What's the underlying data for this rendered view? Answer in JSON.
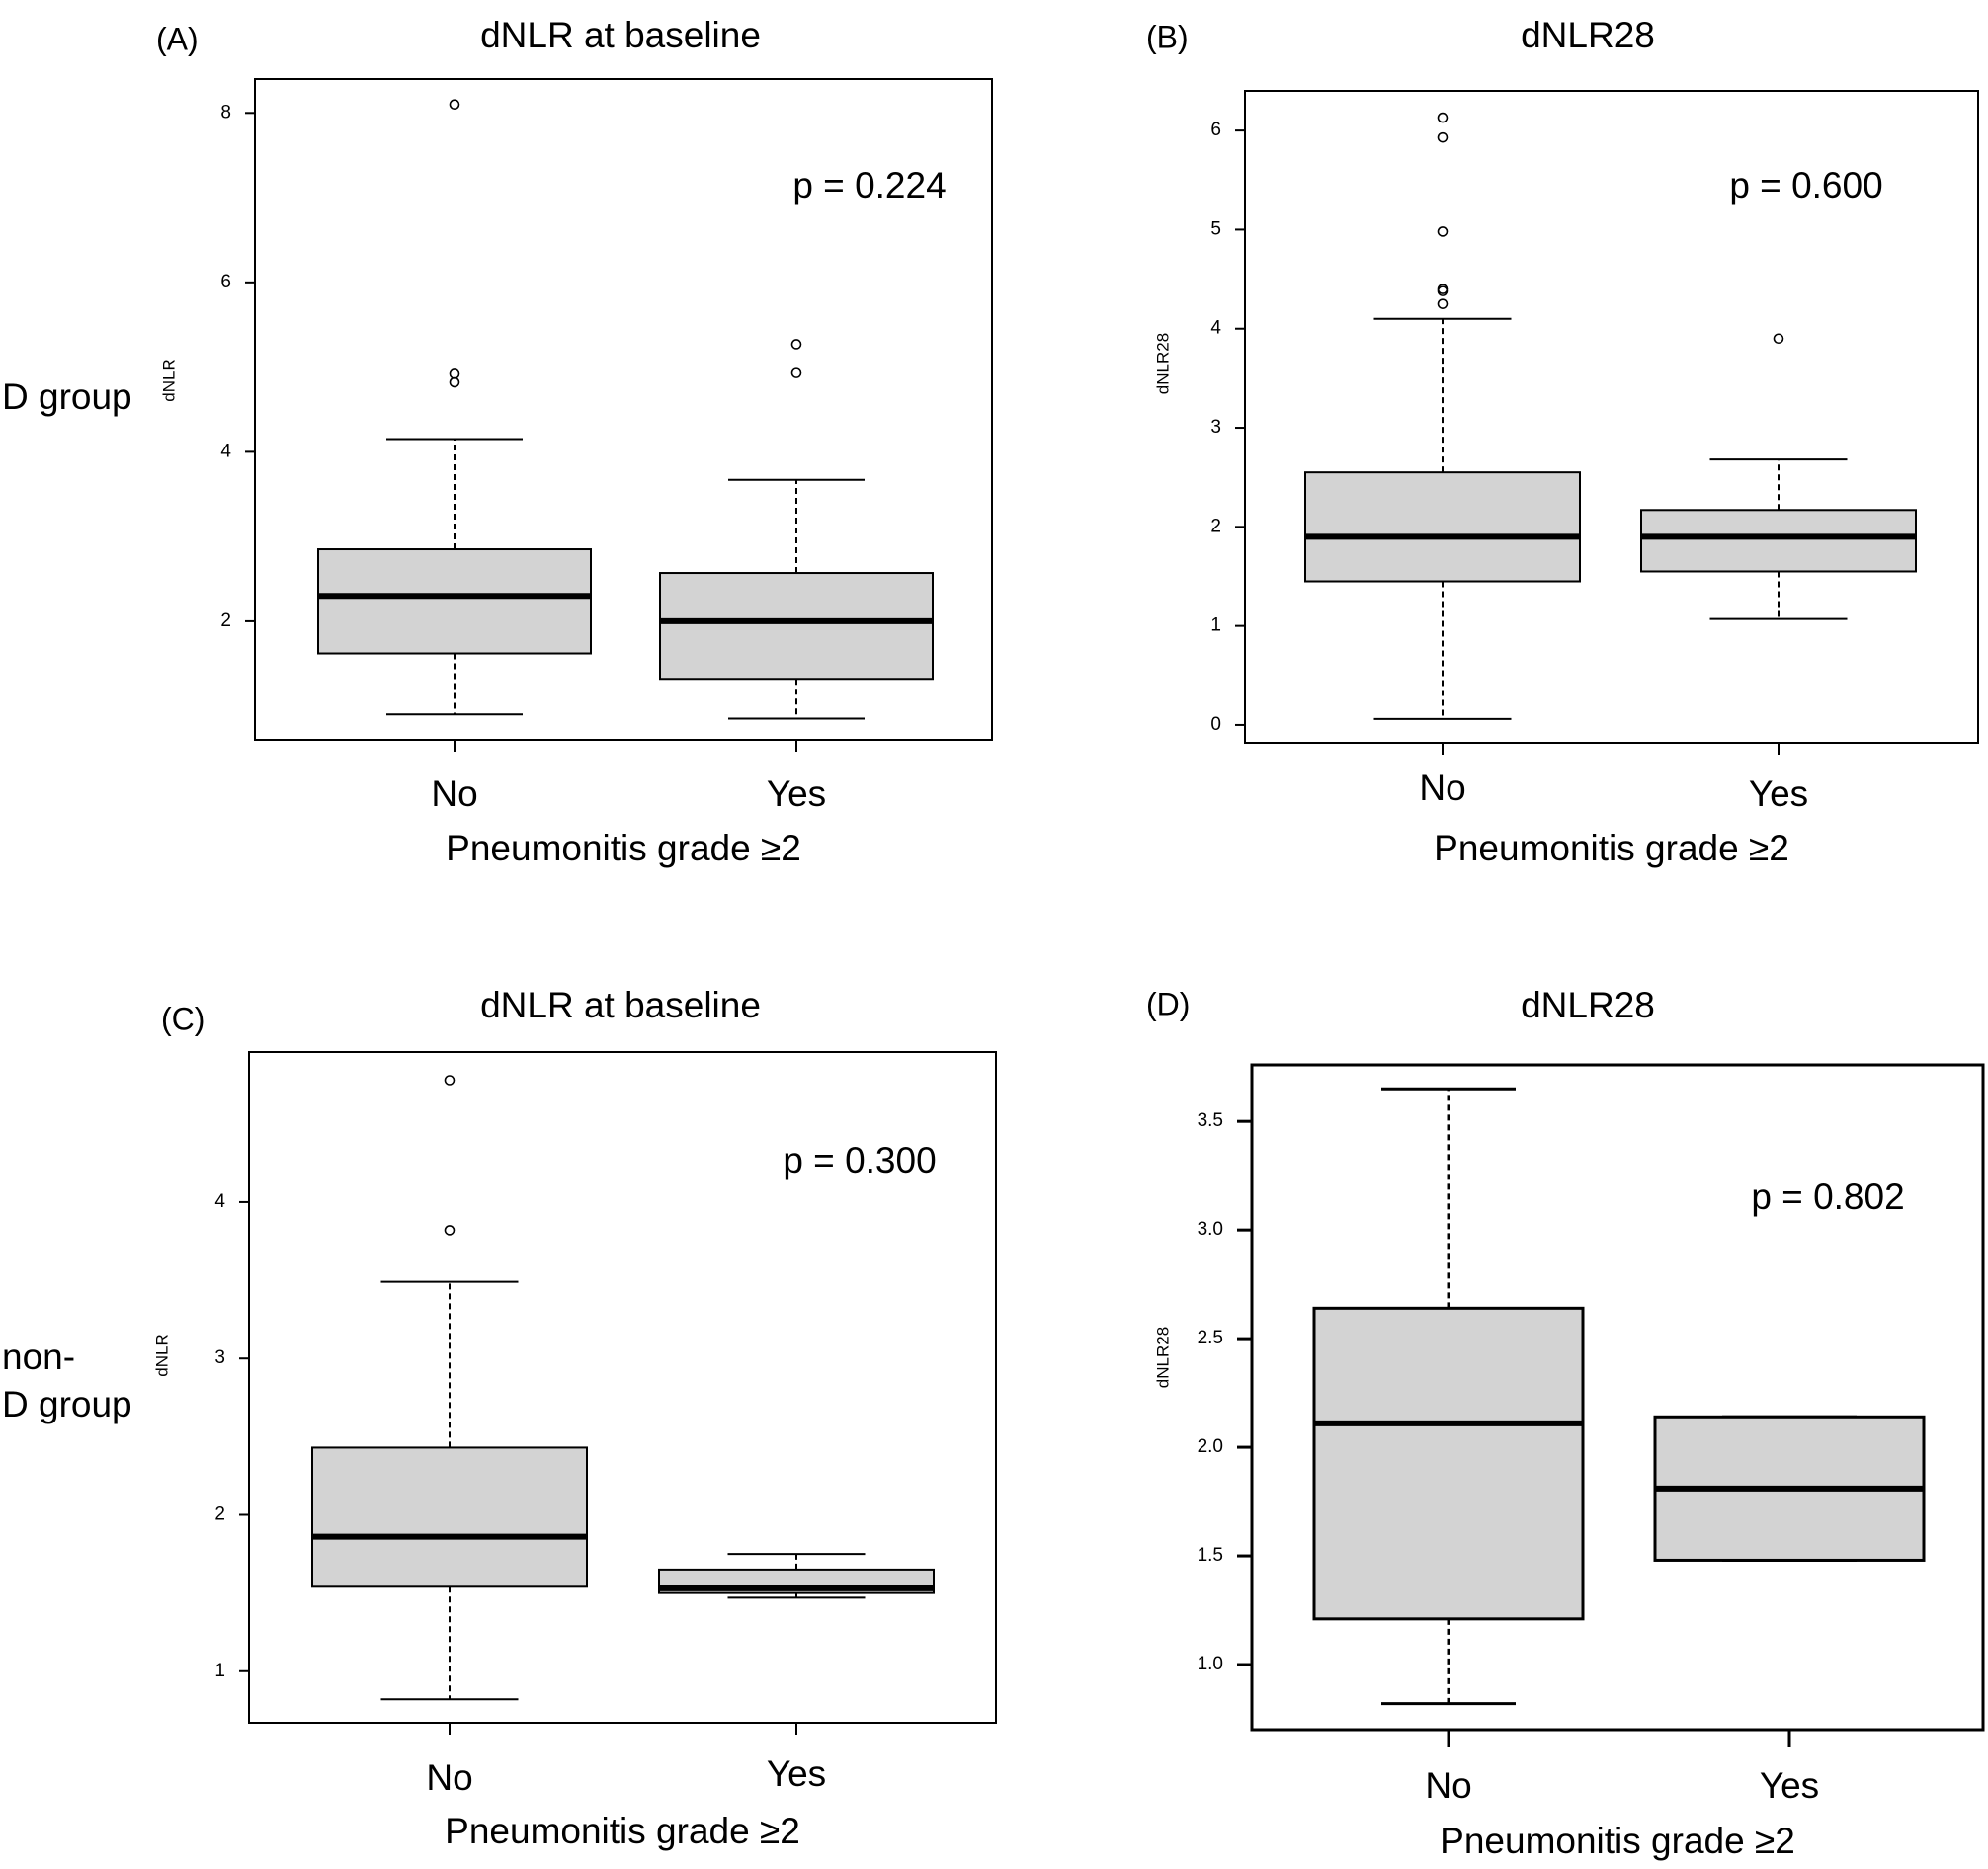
{
  "row_labels": {
    "top": "D group",
    "bottom_line1": "non-",
    "bottom_line2": "D group"
  },
  "chart_data": [
    {
      "type": "boxplot",
      "panel_label": "(A)",
      "title": "dNLR at baseline",
      "xlabel": "Pneumonitis grade ≥2",
      "ylabel": "dNLR",
      "categories": [
        "No",
        "Yes"
      ],
      "yticks": [
        2,
        4,
        6,
        8
      ],
      "ylim": [
        0.6,
        8.4
      ],
      "annotation": "p = 0.224",
      "boxes": [
        {
          "category": "No",
          "whisker_low": 0.9,
          "q1": 1.62,
          "median": 2.3,
          "q3": 2.85,
          "whisker_high": 4.15,
          "outliers": [
            4.82,
            4.92,
            8.1
          ]
        },
        {
          "category": "Yes",
          "whisker_low": 0.85,
          "q1": 1.32,
          "median": 2.0,
          "q3": 2.57,
          "whisker_high": 3.67,
          "outliers": [
            4.93,
            5.27
          ]
        }
      ]
    },
    {
      "type": "boxplot",
      "panel_label": "(B)",
      "title": "dNLR28",
      "xlabel": "Pneumonitis grade ≥2",
      "ylabel": "dNLR28",
      "categories": [
        "No",
        "Yes"
      ],
      "yticks": [
        0,
        1,
        2,
        3,
        4,
        5,
        6
      ],
      "ylim": [
        -0.18,
        6.4
      ],
      "annotation": "p = 0.600",
      "boxes": [
        {
          "category": "No",
          "whisker_low": 0.06,
          "q1": 1.45,
          "median": 1.9,
          "q3": 2.55,
          "whisker_high": 4.1,
          "outliers": [
            4.25,
            4.38,
            4.4,
            4.98,
            5.93,
            6.13
          ]
        },
        {
          "category": "Yes",
          "whisker_low": 1.07,
          "q1": 1.55,
          "median": 1.9,
          "q3": 2.17,
          "whisker_high": 2.68,
          "outliers": [
            3.9
          ]
        }
      ]
    },
    {
      "type": "boxplot",
      "panel_label": "(C)",
      "title": "dNLR at baseline",
      "xlabel": "Pneumonitis grade ≥2",
      "ylabel": "dNLR",
      "categories": [
        "No",
        "Yes"
      ],
      "yticks": [
        1,
        2,
        3,
        4
      ],
      "ylim": [
        0.67,
        4.96
      ],
      "annotation": "p = 0.300",
      "boxes": [
        {
          "category": "No",
          "whisker_low": 0.82,
          "q1": 1.54,
          "median": 1.86,
          "q3": 2.43,
          "whisker_high": 3.49,
          "outliers": [
            3.82,
            4.78
          ]
        },
        {
          "category": "Yes",
          "whisker_low": 1.47,
          "q1": 1.5,
          "median": 1.53,
          "q3": 1.65,
          "whisker_high": 1.75,
          "outliers": []
        }
      ]
    },
    {
      "type": "boxplot",
      "panel_label": "(D)",
      "title": "dNLR28",
      "xlabel": "Pneumonitis grade ≥2",
      "ylabel": "dNLR28",
      "categories": [
        "No",
        "Yes"
      ],
      "yticks": [
        1.0,
        1.5,
        2.0,
        2.5,
        3.0,
        3.5
      ],
      "ylim": [
        0.7,
        3.76
      ],
      "annotation": "p = 0.802",
      "boxes": [
        {
          "category": "No",
          "whisker_low": 0.82,
          "q1": 1.21,
          "median": 2.11,
          "q3": 2.64,
          "whisker_high": 3.65,
          "outliers": []
        },
        {
          "category": "Yes",
          "whisker_low": 1.48,
          "q1": 1.48,
          "median": 1.81,
          "q3": 2.14,
          "whisker_high": 2.14,
          "outliers": []
        }
      ]
    }
  ]
}
